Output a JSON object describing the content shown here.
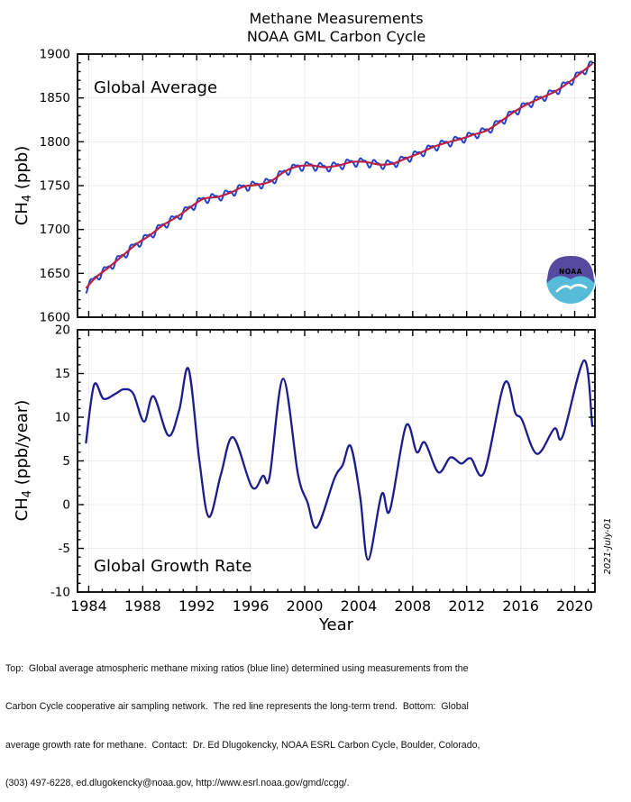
{
  "title": {
    "line1": "Methane Measurements",
    "line2": "NOAA GML Carbon Cycle"
  },
  "date_stamp": "2021-July-01",
  "logo": {
    "name": "NOAA",
    "text": "NOAA"
  },
  "colors": {
    "monthly_line": "#2343c8",
    "trend_line": "#bb2045",
    "growth_line": "#1c1c8e",
    "grid": "#ececec",
    "axis": "#000000",
    "date_stamp": "#9a9a9a",
    "logo_purple": "#554aa0",
    "logo_cyan": "#57bcd9"
  },
  "footer": {
    "lines": [
      "Top:  Global average atmospheric methane mixing ratios (blue line) determined using measurements from the",
      "Carbon Cycle cooperative air sampling network.  The red line represents the long-term trend.  Bottom:  Global",
      "average growth rate for methane.  Contact:  Dr. Ed Dlugokencky, NOAA ESRL Carbon Cycle, Boulder, Colorado,",
      "(303) 497-6228, ed.dlugokencky@noaa.gov, http://www.esrl.noaa.gov/gmd/ccgg/."
    ]
  },
  "chart_data": [
    {
      "type": "line",
      "panel": "top",
      "annotation": "Global Average",
      "ylabel": "CH4 (ppb)",
      "ylabel_parts": {
        "pre": "CH",
        "sub": "4",
        "post": " (ppb)"
      },
      "ylim": [
        1600,
        1900
      ],
      "yticks": [
        1600,
        1650,
        1700,
        1750,
        1800,
        1850,
        1900
      ],
      "y_minor_step": 10,
      "xlim": [
        1983.17,
        2021.5
      ],
      "xticks": [
        1984,
        1988,
        1992,
        1996,
        2000,
        2004,
        2008,
        2012,
        2016,
        2020
      ],
      "x_minor_step": 1,
      "grid": true,
      "series": [
        {
          "name": "long-term trend (red line)",
          "x": [
            1983.8,
            1984.5,
            1985.5,
            1986.5,
            1987.5,
            1988.5,
            1989.5,
            1990.5,
            1991.5,
            1992.5,
            1993.5,
            1994.5,
            1995.5,
            1996.5,
            1997.5,
            1998.5,
            1999.5,
            2000.5,
            2001.5,
            2002.5,
            2003.5,
            2004.5,
            2005.5,
            2006.5,
            2007.5,
            2008.5,
            2009.5,
            2010.5,
            2011.5,
            2012.5,
            2013.5,
            2014.5,
            2015.5,
            2016.5,
            2017.5,
            2018.5,
            2019.5,
            2020.5,
            2021.3
          ],
          "y": [
            1633,
            1645,
            1657,
            1670,
            1683,
            1693,
            1705,
            1714,
            1725,
            1735,
            1737,
            1742,
            1749,
            1751,
            1755,
            1766,
            1772,
            1773,
            1771,
            1773,
            1777,
            1777,
            1774,
            1775,
            1781,
            1787,
            1794,
            1799,
            1803,
            1808,
            1813,
            1823,
            1834,
            1843,
            1850,
            1857,
            1867,
            1879,
            1889
          ]
        },
        {
          "name": "monthly global average (blue line)",
          "derived": "trend plus seasonal cycle",
          "x_range": [
            1983.78,
            2021.35
          ],
          "seasonal_cycle": {
            "amplitude1_ppb": 4.0,
            "amplitude2_ppb": 1.8,
            "phase1": 0.0,
            "phase2": 0.7
          }
        }
      ]
    },
    {
      "type": "line",
      "panel": "bottom",
      "annotation": "Global Growth Rate",
      "xlabel": "Year",
      "ylabel": "CH4 (ppb/year)",
      "ylabel_parts": {
        "pre": "CH",
        "sub": "4",
        "post": " (ppb/year)"
      },
      "ylim": [
        -10,
        20
      ],
      "yticks": [
        -10,
        -5,
        0,
        5,
        10,
        15,
        20
      ],
      "y_minor_step": 1,
      "xlim": [
        1983.17,
        2021.5
      ],
      "xticks": [
        1984,
        1988,
        1992,
        1996,
        2000,
        2004,
        2008,
        2012,
        2016,
        2020
      ],
      "x_minor_step": 1,
      "grid": true,
      "series": [
        {
          "name": "global growth rate",
          "x": [
            1983.8,
            1984.4,
            1985.1,
            1986.0,
            1986.6,
            1987.3,
            1988.1,
            1988.8,
            1989.9,
            1990.7,
            1991.4,
            1992.2,
            1992.9,
            1993.8,
            1994.7,
            1996.1,
            1996.9,
            1997.4,
            1998.4,
            1999.5,
            2000.2,
            2000.9,
            2002.2,
            2002.8,
            2003.4,
            2004.1,
            2004.7,
            2005.7,
            2006.3,
            2007.5,
            2008.3,
            2008.9,
            2009.9,
            2010.8,
            2011.6,
            2012.3,
            2013.3,
            2014.8,
            2015.6,
            2016.1,
            2017.2,
            2018.5,
            2019.1,
            2020.7,
            2021.3
          ],
          "y": [
            7.1,
            13.7,
            12.1,
            12.7,
            13.2,
            12.7,
            9.5,
            12.4,
            7.9,
            10.8,
            15.5,
            5.0,
            -1.4,
            3.5,
            7.7,
            2.0,
            3.3,
            3.2,
            14.4,
            3.5,
            0.3,
            -2.6,
            3.0,
            4.5,
            6.7,
            1.0,
            -6.3,
            1.2,
            -0.7,
            9.0,
            6.0,
            7.1,
            3.7,
            5.4,
            4.7,
            5.3,
            3.7,
            13.9,
            10.5,
            9.7,
            5.8,
            8.7,
            7.8,
            16.5,
            9.0
          ]
        }
      ]
    }
  ]
}
